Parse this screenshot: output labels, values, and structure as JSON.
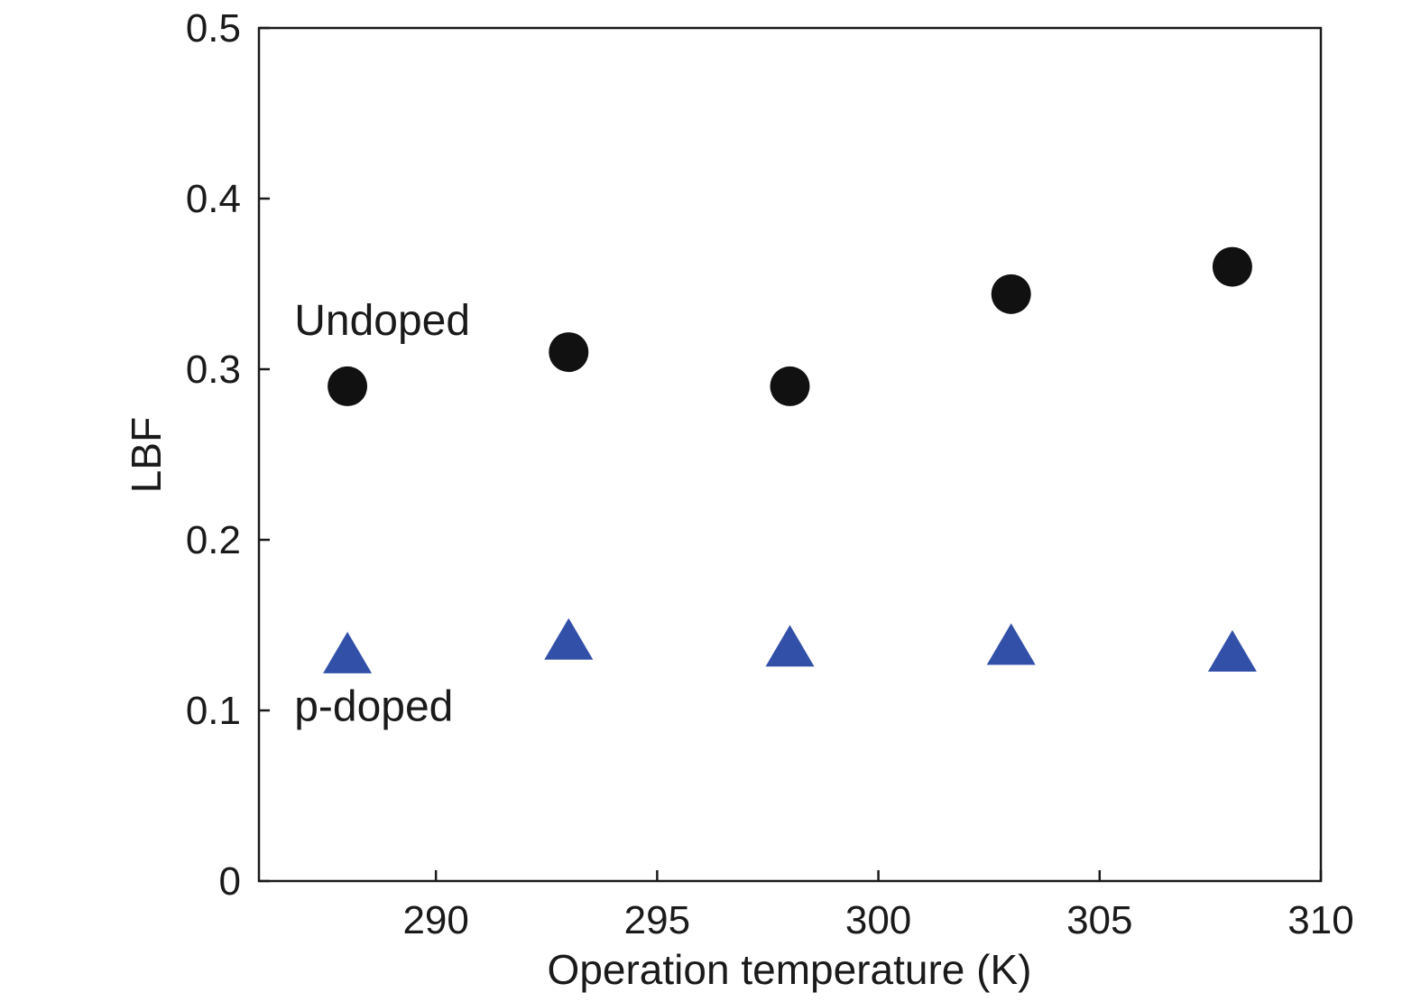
{
  "chart_data": {
    "type": "scatter",
    "xlabel": "Operation temperature (K)",
    "ylabel": "LBF",
    "xlim": [
      286,
      310
    ],
    "ylim": [
      0,
      0.5
    ],
    "x_ticks": [
      290,
      295,
      300,
      305,
      310
    ],
    "y_ticks": [
      0,
      0.1,
      0.2,
      0.3,
      0.4,
      0.5
    ],
    "x_tick_labels": [
      "290",
      "295",
      "300",
      "305",
      "310"
    ],
    "y_tick_labels": [
      "0",
      "0.1",
      "0.2",
      "0.3",
      "0.4",
      "0.5"
    ],
    "grid": false,
    "legend": "none",
    "series": [
      {
        "marker": "circle",
        "color": "#111111",
        "x": [
          288,
          293,
          298,
          303,
          308
        ],
        "y": [
          0.29,
          0.31,
          0.29,
          0.344,
          0.36
        ]
      },
      {
        "marker": "triangle",
        "color": "#3350A8",
        "x": [
          288,
          293,
          298,
          303,
          308
        ],
        "y": [
          0.131,
          0.139,
          0.135,
          0.136,
          0.132
        ]
      }
    ],
    "annotations": [
      {
        "text": "Undoped",
        "x": 286.8,
        "y": 0.32
      },
      {
        "text": "p-doped",
        "x": 286.8,
        "y": 0.094
      }
    ]
  }
}
